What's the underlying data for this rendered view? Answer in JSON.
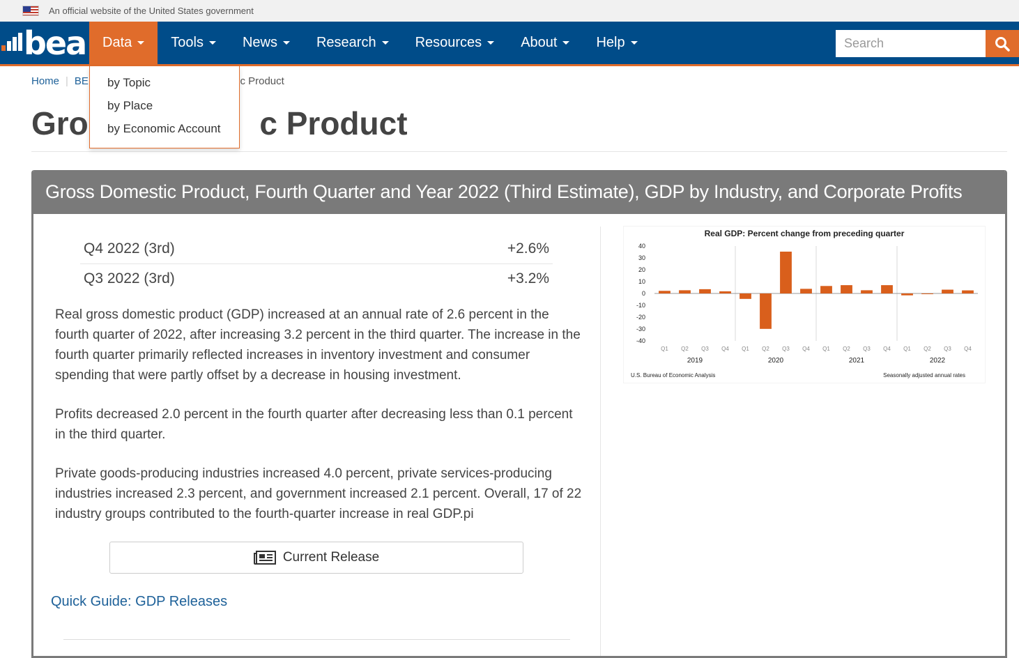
{
  "gov_banner": {
    "text": "An official website of the United States government"
  },
  "navbar": {
    "logo_text": "bea",
    "items": [
      {
        "label": "Data"
      },
      {
        "label": "Tools"
      },
      {
        "label": "News"
      },
      {
        "label": "Research"
      },
      {
        "label": "Resources"
      },
      {
        "label": "About"
      },
      {
        "label": "Help"
      }
    ],
    "search_placeholder": "Search"
  },
  "dropdown": {
    "items": [
      "by Topic",
      "by Place",
      "by Economic Account"
    ]
  },
  "breadcrumb": {
    "home": "Home",
    "partial": "BE",
    "current_fragment": "tic Product"
  },
  "page": {
    "title_left": "Gros",
    "title_right": "c Product"
  },
  "panel": {
    "title": "Gross Domestic Product, Fourth Quarter and Year 2022 (Third Estimate), GDP by Industry, and Corporate Profits",
    "stats": [
      {
        "label": "Q4 2022 (3rd)",
        "value": "+2.6%"
      },
      {
        "label": "Q3 2022 (3rd)",
        "value": "+3.2%"
      }
    ],
    "paragraphs": [
      "Real gross domestic product (GDP) increased at an annual rate of 2.6 percent in the fourth quarter of 2022, after increasing 3.2 percent in the third quarter. The increase in the fourth quarter primarily reflected increases in inventory investment and consumer spending that were partly offset by a decrease in housing investment.",
      "Profits decreased 2.0 percent in the fourth quarter after decreasing less than 0.1 percent in the third quarter.",
      "Private goods-producing industries increased 4.0 percent, private services-producing industries increased 2.3 percent, and government increased 2.1 percent. Overall, 17 of 22 industry groups contributed to the fourth-quarter increase in real GDP.pi"
    ],
    "release_button": "Current Release",
    "quick_guide": "Quick Guide: GDP Releases"
  },
  "chart_data": {
    "type": "bar",
    "title": "Real GDP:  Percent change from preceding quarter",
    "categories": [
      "Q1",
      "Q2",
      "Q3",
      "Q4",
      "Q1",
      "Q2",
      "Q3",
      "Q4",
      "Q1",
      "Q2",
      "Q3",
      "Q4",
      "Q1",
      "Q2",
      "Q3",
      "Q4"
    ],
    "years": [
      "2019",
      "2020",
      "2021",
      "2022"
    ],
    "values": [
      2.2,
      2.7,
      3.6,
      1.8,
      -4.6,
      -29.9,
      35.3,
      3.9,
      6.3,
      7.0,
      2.7,
      7.0,
      -1.6,
      -0.6,
      3.2,
      2.6
    ],
    "ylim": [
      -40,
      40
    ],
    "yticks": [
      40,
      30,
      20,
      10,
      0,
      -10,
      -20,
      -30,
      -40
    ],
    "bar_color": "#d95f1c",
    "footnote_left": "U.S. Bureau of Economic Analysis",
    "footnote_right": "Seasonally adjusted annual rates"
  }
}
